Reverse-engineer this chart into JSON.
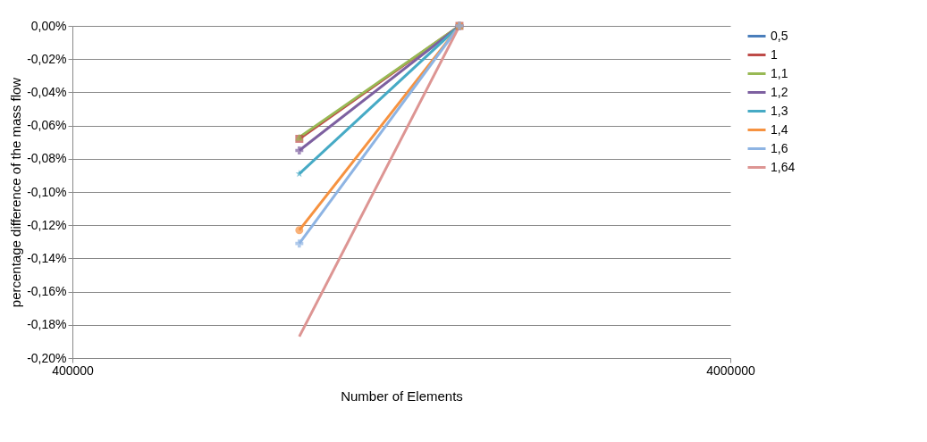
{
  "chart_data": {
    "type": "line",
    "xlabel": "Number of Elements",
    "ylabel": "percentage difference of the mass flow",
    "log": "x",
    "x": [
      885000,
      1550000
    ],
    "xlim": [
      400000,
      4000000
    ],
    "xticks": [
      400000,
      4000000
    ],
    "ylim": [
      -0.2,
      0
    ],
    "yticks": [
      {
        "value": -0.2,
        "label": "-0,20%"
      },
      {
        "value": -0.18,
        "label": "-0,18%"
      },
      {
        "value": -0.16,
        "label": "-0,16%"
      },
      {
        "value": -0.14,
        "label": "-0,14%"
      },
      {
        "value": -0.12,
        "label": "-0,12%"
      },
      {
        "value": -0.1,
        "label": "-0,10%"
      },
      {
        "value": -0.08,
        "label": "-0,08%"
      },
      {
        "value": -0.06,
        "label": "-0,06%"
      },
      {
        "value": -0.04,
        "label": "-0,04%"
      },
      {
        "value": -0.02,
        "label": "-0,02%"
      },
      {
        "value": 0,
        "label": "0,00%"
      }
    ],
    "grid": "y",
    "legend": "right",
    "series": [
      {
        "name": "0,5",
        "color": "#4a7ebb",
        "marker": "diamond",
        "values": [
          null,
          null
        ]
      },
      {
        "name": "1",
        "color": "#be4b48",
        "marker": "square",
        "values": [
          -0.068,
          0
        ]
      },
      {
        "name": "1,1",
        "color": "#98b954",
        "marker": "triangle",
        "values": [
          -0.067,
          0
        ]
      },
      {
        "name": "1,2",
        "color": "#7d60a0",
        "marker": "cross",
        "values": [
          -0.075,
          0
        ]
      },
      {
        "name": "1,3",
        "color": "#46aac5",
        "marker": "star",
        "values": [
          -0.089,
          0
        ]
      },
      {
        "name": "1,4",
        "color": "#f69240",
        "marker": "circle",
        "values": [
          -0.123,
          0
        ]
      },
      {
        "name": "1,6",
        "color": "#8eb4e3",
        "marker": "cross",
        "values": [
          -0.131,
          0
        ]
      },
      {
        "name": "1,64",
        "color": "#dd9593",
        "marker": "none",
        "values": [
          -0.187,
          0
        ]
      }
    ]
  }
}
